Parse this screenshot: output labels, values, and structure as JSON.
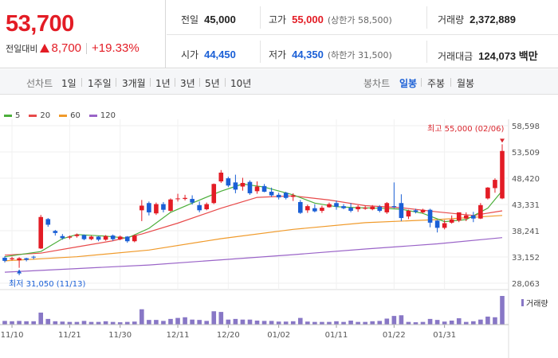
{
  "quote": {
    "price": "53,700",
    "change_label": "전일대비",
    "change_amount": "8,700",
    "change_percent": "+19.33%",
    "prev_close_label": "전일",
    "prev_close": "45,000",
    "high_label": "고가",
    "high": "55,000",
    "upper_limit": "(상한가 58,500)",
    "volume_label": "거래량",
    "volume": "2,372,889",
    "open_label": "시가",
    "open": "44,450",
    "low_label": "저가",
    "low": "44,350",
    "lower_limit": "(하한가 31,500)",
    "value_label": "거래대금",
    "value": "124,073 백만"
  },
  "toolbar": {
    "line_chart_label": "선차트",
    "line_periods": [
      "1일",
      "1주일",
      "3개월",
      "1년",
      "3년",
      "5년",
      "10년"
    ],
    "candle_label": "봉차트",
    "candle_periods": [
      "일봉",
      "주봉",
      "월봉"
    ],
    "active_candle": "일봉"
  },
  "colors": {
    "up": "#e31c25",
    "down": "#1a5fd6",
    "ma5": "#4caf3b",
    "ma20": "#e84a4a",
    "ma60": "#f09a2a",
    "ma120": "#9a64c8",
    "volume": "#8877c6"
  },
  "chart_data": {
    "type": "candlestick",
    "legend": [
      {
        "name": "5",
        "color": "#4caf3b"
      },
      {
        "name": "20",
        "color": "#e84a4a"
      },
      {
        "name": "60",
        "color": "#f09a2a"
      },
      {
        "name": "120",
        "color": "#9a64c8"
      }
    ],
    "y_range": [
      28063,
      58598
    ],
    "y_ticks": [
      "58,598",
      "53,509",
      "48,420",
      "43,331",
      "38,241",
      "33,152",
      "28,063"
    ],
    "y_tick_values": [
      58598,
      53509,
      48420,
      43331,
      38241,
      33152,
      28063
    ],
    "x_tick_labels": [
      "11/10",
      "11/21",
      "11/30",
      "12/11",
      "12/20",
      "01/02",
      "01/11",
      "01/22",
      "01/31"
    ],
    "x_tick_indices": [
      1,
      9,
      16,
      24,
      31,
      38,
      46,
      54,
      61
    ],
    "high_marker": "최고 55,000 (02/06)",
    "low_marker": "최저 31,050 (11/13)",
    "volume_label": "거래량",
    "candles": [
      [
        33000,
        32400,
        33300,
        32100
      ],
      [
        32700,
        32900,
        33200,
        32500
      ],
      [
        32500,
        32900,
        33100,
        31050
      ],
      [
        32900,
        32600,
        33000,
        32300
      ],
      [
        33200,
        33100,
        33400,
        32700
      ],
      [
        34800,
        40900,
        41300,
        34700
      ],
      [
        40500,
        39400,
        40700,
        39000
      ],
      [
        38200,
        37800,
        38400,
        37300
      ],
      [
        37200,
        36800,
        37600,
        36500
      ],
      [
        36900,
        37100,
        37300,
        36600
      ],
      [
        37200,
        37500,
        37700,
        36900
      ],
      [
        37400,
        36600,
        37500,
        36400
      ],
      [
        36600,
        37100,
        37300,
        36400
      ],
      [
        37100,
        36500,
        37200,
        36200
      ],
      [
        36500,
        37200,
        37400,
        36300
      ],
      [
        37300,
        36600,
        37500,
        36300
      ],
      [
        36600,
        37100,
        37300,
        36400
      ],
      [
        37100,
        36200,
        37200,
        35900
      ],
      [
        36200,
        37300,
        37500,
        36000
      ],
      [
        42200,
        43100,
        44200,
        40100
      ],
      [
        43600,
        41800,
        43900,
        41200
      ],
      [
        41600,
        43400,
        43700,
        41300
      ],
      [
        43400,
        42300,
        43800,
        41800
      ],
      [
        42100,
        44300,
        44500,
        41900
      ],
      [
        44400,
        44500,
        45400,
        43900
      ],
      [
        44400,
        44600,
        45200,
        44100
      ],
      [
        44400,
        43700,
        45100,
        43300
      ],
      [
        43200,
        42200,
        43900,
        41800
      ],
      [
        42400,
        43400,
        43700,
        42200
      ],
      [
        43600,
        47300,
        47400,
        43400
      ],
      [
        47800,
        49500,
        50000,
        47500
      ],
      [
        48400,
        47000,
        48700,
        46700
      ],
      [
        47600,
        46200,
        49100,
        45500
      ],
      [
        46800,
        47500,
        48500,
        46000
      ],
      [
        47700,
        45500,
        48000,
        45200
      ],
      [
        45900,
        46800,
        47800,
        45400
      ],
      [
        46900,
        45800,
        47300,
        45700
      ],
      [
        45800,
        45100,
        46600,
        44800
      ],
      [
        45200,
        44700,
        45600,
        44300
      ],
      [
        45600,
        44600,
        45800,
        44300
      ],
      [
        44800,
        45100,
        45500,
        44000
      ],
      [
        43800,
        41700,
        44200,
        41500
      ],
      [
        42200,
        43000,
        43300,
        41700
      ],
      [
        42600,
        42000,
        43400,
        41800
      ],
      [
        42100,
        42700,
        43100,
        41700
      ],
      [
        42800,
        43400,
        43700,
        42700
      ],
      [
        43600,
        42900,
        44100,
        42300
      ],
      [
        43000,
        42600,
        43400,
        42400
      ],
      [
        42700,
        42100,
        43600,
        41800
      ],
      [
        42400,
        42900,
        43200,
        41900
      ],
      [
        42500,
        42700,
        43100,
        42300
      ],
      [
        42400,
        42900,
        43200,
        42200
      ],
      [
        42900,
        42100,
        43200,
        41800
      ],
      [
        41800,
        43600,
        43800,
        41500
      ],
      [
        43000,
        42800,
        47600,
        42600
      ],
      [
        43600,
        40700,
        45300,
        40100
      ],
      [
        41000,
        42100,
        42300,
        40500
      ],
      [
        42200,
        41900,
        42500,
        41600
      ],
      [
        41800,
        42300,
        42500,
        41600
      ],
      [
        42300,
        39800,
        42500,
        38900
      ],
      [
        40200,
        38800,
        40300,
        37900
      ],
      [
        38800,
        39700,
        40300,
        38500
      ],
      [
        39800,
        40400,
        41200,
        39600
      ],
      [
        40200,
        41800,
        41800,
        39900
      ],
      [
        40600,
        41200,
        41800,
        40100
      ],
      [
        41200,
        40600,
        41900,
        39900
      ],
      [
        40600,
        43200,
        43600,
        40500
      ],
      [
        44500,
        46600,
        46700,
        44300
      ],
      [
        46500,
        48100,
        48400,
        45600
      ],
      [
        44500,
        53700,
        55000,
        44350
      ]
    ],
    "volumes": [
      55000,
      50000,
      55000,
      50000,
      50000,
      180000,
      85000,
      50000,
      45000,
      40000,
      40000,
      55000,
      40000,
      40000,
      50000,
      40000,
      35000,
      40000,
      45000,
      230000,
      70000,
      70000,
      55000,
      85000,
      100000,
      110000,
      75000,
      70000,
      55000,
      200000,
      190000,
      75000,
      85000,
      75000,
      75000,
      60000,
      55000,
      55000,
      45000,
      45000,
      50000,
      100000,
      45000,
      40000,
      40000,
      40000,
      50000,
      40000,
      60000,
      40000,
      40000,
      50000,
      55000,
      90000,
      130000,
      140000,
      40000,
      35000,
      40000,
      85000,
      70000,
      45000,
      60000,
      95000,
      40000,
      50000,
      75000,
      120000,
      110000,
      430000
    ],
    "ma5": [
      [
        0,
        33200
      ],
      [
        5,
        34200
      ],
      [
        8,
        36700
      ],
      [
        10,
        37500
      ],
      [
        14,
        37200
      ],
      [
        17,
        36800
      ],
      [
        20,
        38700
      ],
      [
        23,
        41800
      ],
      [
        26,
        43600
      ],
      [
        30,
        45900
      ],
      [
        33,
        47300
      ],
      [
        36,
        46700
      ],
      [
        40,
        45200
      ],
      [
        43,
        43600
      ],
      [
        46,
        42900
      ],
      [
        49,
        42700
      ],
      [
        52,
        42600
      ],
      [
        55,
        42400
      ],
      [
        58,
        41600
      ],
      [
        61,
        40000
      ],
      [
        64,
        40400
      ],
      [
        67,
        42600
      ],
      [
        69,
        46000
      ]
    ],
    "ma20": [
      [
        0,
        33500
      ],
      [
        5,
        33900
      ],
      [
        10,
        35100
      ],
      [
        15,
        36300
      ],
      [
        19,
        37600
      ],
      [
        24,
        39700
      ],
      [
        30,
        42600
      ],
      [
        35,
        44700
      ],
      [
        40,
        45000
      ],
      [
        45,
        44200
      ],
      [
        50,
        43100
      ],
      [
        55,
        42700
      ],
      [
        60,
        41900
      ],
      [
        65,
        41200
      ],
      [
        69,
        42100
      ]
    ],
    "ma60": [
      [
        0,
        32400
      ],
      [
        10,
        33200
      ],
      [
        20,
        34500
      ],
      [
        30,
        36700
      ],
      [
        40,
        38500
      ],
      [
        50,
        39800
      ],
      [
        60,
        40400
      ],
      [
        69,
        41200
      ]
    ],
    "ma120": [
      [
        0,
        30200
      ],
      [
        10,
        30900
      ],
      [
        20,
        31600
      ],
      [
        30,
        32600
      ],
      [
        40,
        33600
      ],
      [
        50,
        34700
      ],
      [
        60,
        35700
      ],
      [
        69,
        36900
      ]
    ]
  }
}
